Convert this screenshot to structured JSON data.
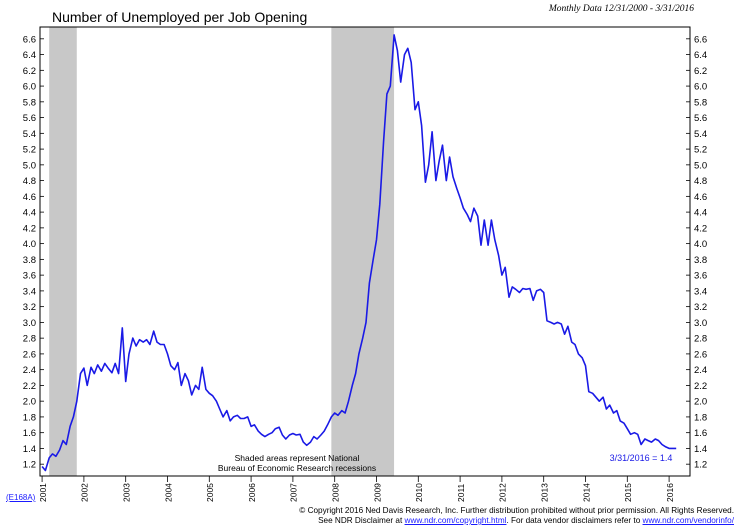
{
  "header": {
    "title": "Number of Unemployed per Job Opening",
    "period": "Monthly Data 12/31/2000 - 3/31/2016"
  },
  "chart_data": {
    "type": "line",
    "title": "Number of Unemployed per Job Opening",
    "xlim": [
      2000.95,
      2016.5
    ],
    "ylim": [
      1.05,
      6.75
    ],
    "y_ticks": [
      "1.2",
      "1.4",
      "1.6",
      "1.8",
      "2.0",
      "2.2",
      "2.4",
      "2.6",
      "2.8",
      "3.0",
      "3.2",
      "3.4",
      "3.6",
      "3.8",
      "4.0",
      "4.2",
      "4.4",
      "4.6",
      "4.8",
      "5.0",
      "5.2",
      "5.4",
      "5.6",
      "5.8",
      "6.0",
      "6.2",
      "6.4",
      "6.6"
    ],
    "x_ticks": [
      "2001",
      "2002",
      "2003",
      "2004",
      "2005",
      "2006",
      "2007",
      "2008",
      "2009",
      "2010",
      "2011",
      "2012",
      "2013",
      "2014",
      "2015",
      "2016"
    ],
    "recessions": [
      [
        2001.17,
        2001.83
      ],
      [
        2007.92,
        2009.42
      ]
    ],
    "line_color": "#1a1ae6",
    "recession_color": "#c8c8c8",
    "annotation": "Shaded areas represent National\nBureau of Economic Research recessions",
    "last_value_label": "3/31/2016 = 1.4",
    "series": [
      {
        "x": [
          2001.0,
          2001.08,
          2001.17,
          2001.25,
          2001.33,
          2001.42,
          2001.5,
          2001.58,
          2001.67,
          2001.75,
          2001.83,
          2001.92,
          2002.0,
          2002.08,
          2002.17,
          2002.25,
          2002.33,
          2002.42,
          2002.5,
          2002.58,
          2002.67,
          2002.75,
          2002.83,
          2002.92,
          2003.0,
          2003.08,
          2003.17,
          2003.25,
          2003.33,
          2003.42,
          2003.5,
          2003.58,
          2003.67,
          2003.75,
          2003.83,
          2003.92,
          2004.0,
          2004.08,
          2004.17,
          2004.25,
          2004.33,
          2004.42,
          2004.5,
          2004.58,
          2004.67,
          2004.75,
          2004.83,
          2004.92,
          2005.0,
          2005.08,
          2005.17,
          2005.25,
          2005.33,
          2005.42,
          2005.5,
          2005.58,
          2005.67,
          2005.75,
          2005.83,
          2005.92,
          2006.0,
          2006.08,
          2006.17,
          2006.25,
          2006.33,
          2006.42,
          2006.5,
          2006.58,
          2006.67,
          2006.75,
          2006.83,
          2006.92,
          2007.0,
          2007.08,
          2007.17,
          2007.25,
          2007.33,
          2007.42,
          2007.5,
          2007.58,
          2007.67,
          2007.75,
          2007.83,
          2007.92,
          2008.0,
          2008.08,
          2008.17,
          2008.25,
          2008.33,
          2008.42,
          2008.5,
          2008.58,
          2008.67,
          2008.75,
          2008.83,
          2008.92,
          2009.0,
          2009.08,
          2009.17,
          2009.25,
          2009.33,
          2009.42,
          2009.5,
          2009.58,
          2009.67,
          2009.75,
          2009.83,
          2009.92,
          2010.0,
          2010.08,
          2010.17,
          2010.25,
          2010.33,
          2010.42,
          2010.5,
          2010.58,
          2010.67,
          2010.75,
          2010.83,
          2010.92,
          2011.0,
          2011.08,
          2011.17,
          2011.25,
          2011.33,
          2011.42,
          2011.5,
          2011.58,
          2011.67,
          2011.75,
          2011.83,
          2011.92,
          2012.0,
          2012.08,
          2012.17,
          2012.25,
          2012.33,
          2012.42,
          2012.5,
          2012.58,
          2012.67,
          2012.75,
          2012.83,
          2012.92,
          2013.0,
          2013.08,
          2013.17,
          2013.25,
          2013.33,
          2013.42,
          2013.5,
          2013.58,
          2013.67,
          2013.75,
          2013.83,
          2013.92,
          2014.0,
          2014.08,
          2014.17,
          2014.25,
          2014.33,
          2014.42,
          2014.5,
          2014.58,
          2014.67,
          2014.75,
          2014.83,
          2014.92,
          2015.0,
          2015.08,
          2015.17,
          2015.25,
          2015.33,
          2015.42,
          2015.5,
          2015.58,
          2015.67,
          2015.75,
          2015.83,
          2015.92,
          2016.0,
          2016.08,
          2016.17
        ],
        "values": [
          1.17,
          1.12,
          1.28,
          1.33,
          1.3,
          1.38,
          1.5,
          1.45,
          1.68,
          1.8,
          2.0,
          2.35,
          2.42,
          2.2,
          2.43,
          2.35,
          2.46,
          2.38,
          2.48,
          2.42,
          2.36,
          2.48,
          2.35,
          2.93,
          2.25,
          2.6,
          2.8,
          2.7,
          2.78,
          2.75,
          2.78,
          2.72,
          2.89,
          2.75,
          2.72,
          2.72,
          2.6,
          2.45,
          2.4,
          2.49,
          2.2,
          2.35,
          2.26,
          2.08,
          2.2,
          2.15,
          2.43,
          2.15,
          2.1,
          2.07,
          2.0,
          1.9,
          1.8,
          1.88,
          1.75,
          1.8,
          1.82,
          1.78,
          1.78,
          1.8,
          1.68,
          1.7,
          1.62,
          1.58,
          1.55,
          1.58,
          1.6,
          1.65,
          1.67,
          1.57,
          1.52,
          1.57,
          1.59,
          1.57,
          1.58,
          1.48,
          1.44,
          1.48,
          1.55,
          1.52,
          1.57,
          1.62,
          1.7,
          1.8,
          1.85,
          1.82,
          1.88,
          1.85,
          2.0,
          2.2,
          2.35,
          2.6,
          2.8,
          3.0,
          3.5,
          3.8,
          4.05,
          4.5,
          5.3,
          5.9,
          6.0,
          6.65,
          6.45,
          6.05,
          6.4,
          6.48,
          6.3,
          5.7,
          5.8,
          5.5,
          4.78,
          5.0,
          5.42,
          4.8,
          5.05,
          5.25,
          4.8,
          5.1,
          4.85,
          4.7,
          4.58,
          4.45,
          4.37,
          4.28,
          4.45,
          4.35,
          3.98,
          4.3,
          3.98,
          4.3,
          4.05,
          3.85,
          3.6,
          3.7,
          3.32,
          3.45,
          3.42,
          3.38,
          3.43,
          3.42,
          3.43,
          3.28,
          3.4,
          3.42,
          3.38,
          3.02,
          3.0,
          2.98,
          3.0,
          2.98,
          2.85,
          2.95,
          2.75,
          2.72,
          2.6,
          2.55,
          2.45,
          2.12,
          2.1,
          2.05,
          2.0,
          2.05,
          1.9,
          1.95,
          1.85,
          1.88,
          1.75,
          1.72,
          1.65,
          1.58,
          1.6,
          1.58,
          1.45,
          1.52,
          1.5,
          1.48,
          1.52,
          1.5,
          1.45,
          1.42,
          1.4,
          1.4,
          1.4
        ]
      }
    ]
  },
  "footer": {
    "code": "(E168A)",
    "line1": "© Copyright 2016 Ned Davis Research, Inc.  Further distribution prohibited without prior permission.  All Rights Reserved.",
    "line2a": "See NDR Disclaimer at ",
    "link1": "www.ndr.com/copyright.html",
    "line2b": ". For data vendor disclaimers refer to ",
    "link2": "www.ndr.com/vendorinfo/"
  }
}
